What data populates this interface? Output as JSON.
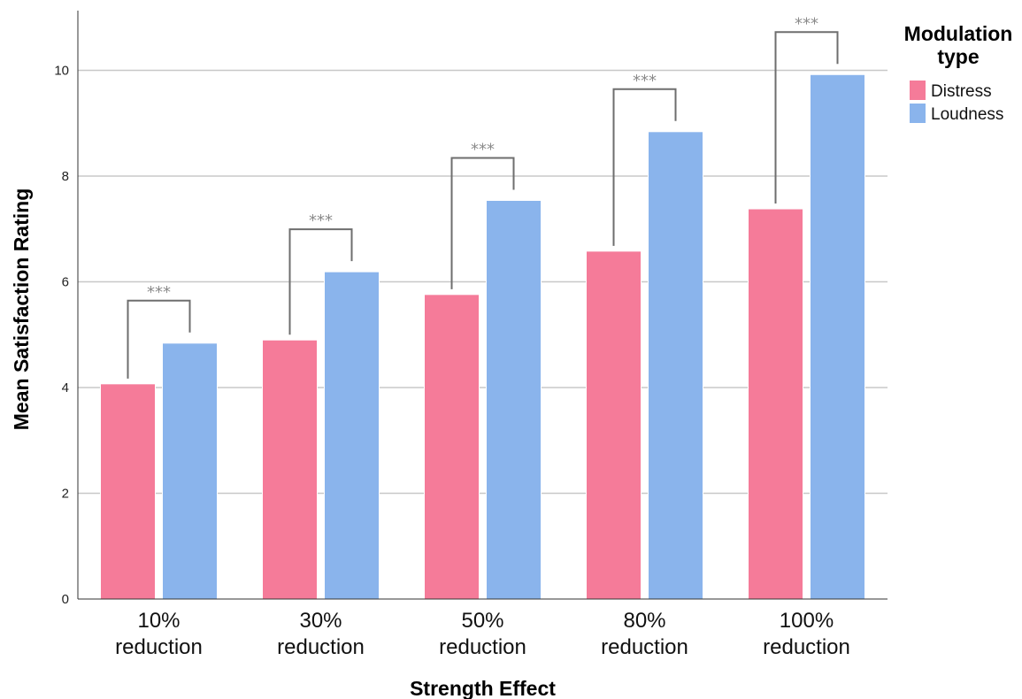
{
  "chart_data": {
    "type": "bar",
    "xlabel": "Strength Effect",
    "ylabel": "Mean Satisfaction Rating",
    "ylim": [
      0,
      11
    ],
    "yticks": [
      0,
      2,
      4,
      6,
      8,
      10
    ],
    "grid": "horizontal",
    "legend_title": [
      "Modulation",
      "type"
    ],
    "legend_position": "top-right",
    "categories": [
      [
        "10%",
        "reduction"
      ],
      [
        "30%",
        "reduction"
      ],
      [
        "50%",
        "reduction"
      ],
      [
        "80%",
        "reduction"
      ],
      [
        "100%",
        "reduction"
      ]
    ],
    "series": [
      {
        "name": "Distress",
        "color": "#f57b99",
        "values": [
          4.07,
          4.9,
          5.76,
          6.58,
          7.38
        ]
      },
      {
        "name": "Loudness",
        "color": "#8ab4ec",
        "values": [
          4.84,
          6.19,
          7.54,
          8.84,
          9.92
        ]
      }
    ],
    "significance": [
      {
        "label": "***"
      },
      {
        "label": "***"
      },
      {
        "label": "***"
      },
      {
        "label": "***"
      },
      {
        "label": "***"
      }
    ]
  }
}
